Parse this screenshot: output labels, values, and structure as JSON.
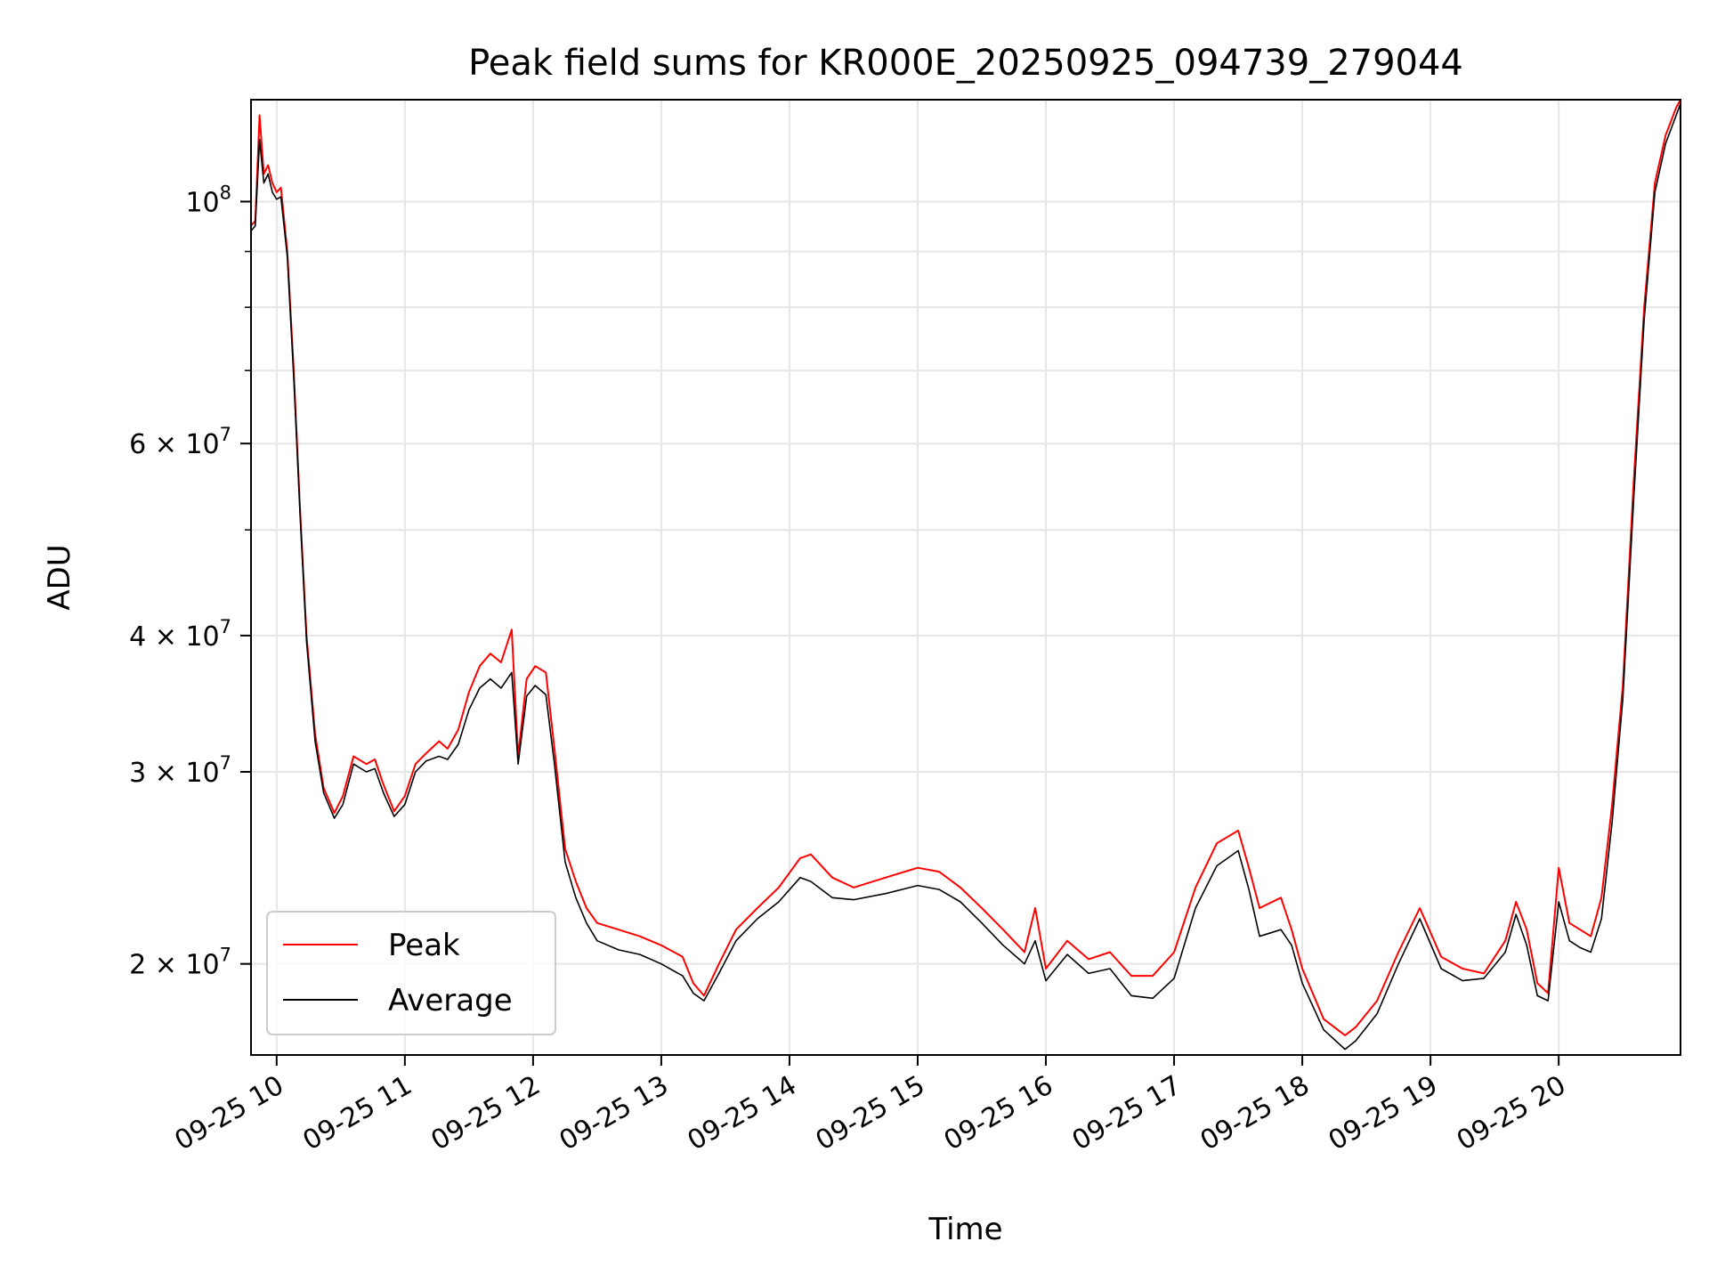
{
  "chart_data": {
    "type": "line",
    "title": "Peak field sums for KR000E_20250925_094739_279044",
    "xlabel": "Time",
    "ylabel": "ADU",
    "yscale": "log",
    "grid": true,
    "legend_position": "lower-left",
    "xlim": [
      "2025-09-25 09:48",
      "2025-09-25 20:57"
    ],
    "ylim": [
      16500000,
      124000000
    ],
    "x_ticks": [
      {
        "value": "2025-09-25 10:00",
        "label": "09-25 10"
      },
      {
        "value": "2025-09-25 11:00",
        "label": "09-25 11"
      },
      {
        "value": "2025-09-25 12:00",
        "label": "09-25 12"
      },
      {
        "value": "2025-09-25 13:00",
        "label": "09-25 13"
      },
      {
        "value": "2025-09-25 14:00",
        "label": "09-25 14"
      },
      {
        "value": "2025-09-25 15:00",
        "label": "09-25 15"
      },
      {
        "value": "2025-09-25 16:00",
        "label": "09-25 16"
      },
      {
        "value": "2025-09-25 17:00",
        "label": "09-25 17"
      },
      {
        "value": "2025-09-25 18:00",
        "label": "09-25 18"
      },
      {
        "value": "2025-09-25 19:00",
        "label": "09-25 19"
      },
      {
        "value": "2025-09-25 20:00",
        "label": "09-25 20"
      }
    ],
    "y_ticks": [
      {
        "value": 20000000,
        "mantissa": "2",
        "exponent": "7"
      },
      {
        "value": 30000000,
        "mantissa": "3",
        "exponent": "7"
      },
      {
        "value": 40000000,
        "mantissa": "4",
        "exponent": "7"
      },
      {
        "value": 60000000,
        "mantissa": "6",
        "exponent": "7"
      },
      {
        "value": 100000000,
        "mantissa": "",
        "exponent": "8"
      }
    ],
    "y_minor_ticks": [
      50000000,
      70000000,
      80000000,
      90000000
    ],
    "series": [
      {
        "name": "Peak",
        "color": "#ff0000",
        "points": [
          [
            "09:48",
            95000000
          ],
          [
            "09:50",
            96000000
          ],
          [
            "09:52",
            120000000
          ],
          [
            "09:54",
            106000000
          ],
          [
            "09:56",
            108000000
          ],
          [
            "09:58",
            104000000
          ],
          [
            "10:00",
            102000000
          ],
          [
            "10:02",
            103000000
          ],
          [
            "10:05",
            90000000
          ],
          [
            "10:08",
            70000000
          ],
          [
            "10:11",
            52000000
          ],
          [
            "10:14",
            40000000
          ],
          [
            "10:18",
            32500000
          ],
          [
            "10:22",
            29000000
          ],
          [
            "10:27",
            27500000
          ],
          [
            "10:31",
            28500000
          ],
          [
            "10:36",
            31000000
          ],
          [
            "10:42",
            30500000
          ],
          [
            "10:46",
            30800000
          ],
          [
            "10:50",
            29200000
          ],
          [
            "10:55",
            27600000
          ],
          [
            "11:00",
            28500000
          ],
          [
            "11:05",
            30500000
          ],
          [
            "11:10",
            31200000
          ],
          [
            "11:16",
            32000000
          ],
          [
            "11:20",
            31500000
          ],
          [
            "11:25",
            32800000
          ],
          [
            "11:30",
            35500000
          ],
          [
            "11:35",
            37500000
          ],
          [
            "11:40",
            38500000
          ],
          [
            "11:45",
            37800000
          ],
          [
            "11:50",
            40500000
          ],
          [
            "11:53",
            31000000
          ],
          [
            "11:57",
            36500000
          ],
          [
            "12:01",
            37500000
          ],
          [
            "12:06",
            37000000
          ],
          [
            "12:10",
            31500000
          ],
          [
            "12:15",
            25500000
          ],
          [
            "12:20",
            23800000
          ],
          [
            "12:25",
            22500000
          ],
          [
            "12:30",
            21800000
          ],
          [
            "12:40",
            21500000
          ],
          [
            "12:50",
            21200000
          ],
          [
            "13:00",
            20800000
          ],
          [
            "13:10",
            20300000
          ],
          [
            "13:15",
            19200000
          ],
          [
            "13:20",
            18700000
          ],
          [
            "13:27",
            20000000
          ],
          [
            "13:35",
            21500000
          ],
          [
            "13:45",
            22500000
          ],
          [
            "13:55",
            23500000
          ],
          [
            "14:05",
            25000000
          ],
          [
            "14:10",
            25200000
          ],
          [
            "14:20",
            24000000
          ],
          [
            "14:30",
            23500000
          ],
          [
            "14:45",
            24000000
          ],
          [
            "15:00",
            24500000
          ],
          [
            "15:10",
            24300000
          ],
          [
            "15:20",
            23500000
          ],
          [
            "15:30",
            22500000
          ],
          [
            "15:40",
            21500000
          ],
          [
            "15:50",
            20500000
          ],
          [
            "15:55",
            22500000
          ],
          [
            "16:00",
            19800000
          ],
          [
            "16:10",
            21000000
          ],
          [
            "16:20",
            20200000
          ],
          [
            "16:30",
            20500000
          ],
          [
            "16:40",
            19500000
          ],
          [
            "16:50",
            19500000
          ],
          [
            "17:00",
            20500000
          ],
          [
            "17:10",
            23500000
          ],
          [
            "17:20",
            25800000
          ],
          [
            "17:30",
            26500000
          ],
          [
            "17:35",
            24500000
          ],
          [
            "17:40",
            22500000
          ],
          [
            "17:50",
            23000000
          ],
          [
            "17:55",
            21500000
          ],
          [
            "18:00",
            19800000
          ],
          [
            "18:10",
            17800000
          ],
          [
            "18:20",
            17200000
          ],
          [
            "18:25",
            17500000
          ],
          [
            "18:35",
            18500000
          ],
          [
            "18:45",
            20500000
          ],
          [
            "18:55",
            22500000
          ],
          [
            "19:05",
            20300000
          ],
          [
            "19:15",
            19800000
          ],
          [
            "19:25",
            19600000
          ],
          [
            "19:35",
            21000000
          ],
          [
            "19:40",
            22800000
          ],
          [
            "19:45",
            21500000
          ],
          [
            "19:50",
            19200000
          ],
          [
            "19:55",
            18800000
          ],
          [
            "20:00",
            24500000
          ],
          [
            "20:05",
            21800000
          ],
          [
            "20:10",
            21500000
          ],
          [
            "20:15",
            21200000
          ],
          [
            "20:20",
            23000000
          ],
          [
            "20:25",
            28000000
          ],
          [
            "20:30",
            36000000
          ],
          [
            "20:35",
            55000000
          ],
          [
            "20:40",
            80000000
          ],
          [
            "20:45",
            104000000
          ],
          [
            "20:50",
            115000000
          ],
          [
            "20:55",
            122000000
          ],
          [
            "20:57",
            124000000
          ]
        ]
      },
      {
        "name": "Average",
        "color": "#000000",
        "points": [
          [
            "09:48",
            94000000
          ],
          [
            "09:50",
            95000000
          ],
          [
            "09:52",
            114000000
          ],
          [
            "09:54",
            104000000
          ],
          [
            "09:56",
            106000000
          ],
          [
            "09:58",
            102000000
          ],
          [
            "10:00",
            100500000
          ],
          [
            "10:02",
            101000000
          ],
          [
            "10:05",
            89000000
          ],
          [
            "10:08",
            69000000
          ],
          [
            "10:11",
            51500000
          ],
          [
            "10:14",
            39500000
          ],
          [
            "10:18",
            32000000
          ],
          [
            "10:22",
            28700000
          ],
          [
            "10:27",
            27200000
          ],
          [
            "10:31",
            28000000
          ],
          [
            "10:36",
            30500000
          ],
          [
            "10:42",
            30000000
          ],
          [
            "10:46",
            30200000
          ],
          [
            "10:50",
            28700000
          ],
          [
            "10:55",
            27300000
          ],
          [
            "11:00",
            28000000
          ],
          [
            "11:05",
            30000000
          ],
          [
            "11:10",
            30700000
          ],
          [
            "11:16",
            31000000
          ],
          [
            "11:20",
            30800000
          ],
          [
            "11:25",
            31800000
          ],
          [
            "11:30",
            34200000
          ],
          [
            "11:35",
            35800000
          ],
          [
            "11:40",
            36500000
          ],
          [
            "11:45",
            35800000
          ],
          [
            "11:50",
            37000000
          ],
          [
            "11:53",
            30500000
          ],
          [
            "11:57",
            35200000
          ],
          [
            "12:01",
            36000000
          ],
          [
            "12:06",
            35300000
          ],
          [
            "12:10",
            30500000
          ],
          [
            "12:15",
            24800000
          ],
          [
            "12:20",
            23000000
          ],
          [
            "12:25",
            21800000
          ],
          [
            "12:30",
            21000000
          ],
          [
            "12:40",
            20600000
          ],
          [
            "12:50",
            20400000
          ],
          [
            "13:00",
            20000000
          ],
          [
            "13:10",
            19500000
          ],
          [
            "13:15",
            18800000
          ],
          [
            "13:20",
            18500000
          ],
          [
            "13:27",
            19600000
          ],
          [
            "13:35",
            21000000
          ],
          [
            "13:45",
            22000000
          ],
          [
            "13:55",
            22800000
          ],
          [
            "14:05",
            24000000
          ],
          [
            "14:10",
            23800000
          ],
          [
            "14:20",
            23000000
          ],
          [
            "14:30",
            22900000
          ],
          [
            "14:45",
            23200000
          ],
          [
            "15:00",
            23600000
          ],
          [
            "15:10",
            23400000
          ],
          [
            "15:20",
            22800000
          ],
          [
            "15:30",
            21800000
          ],
          [
            "15:40",
            20800000
          ],
          [
            "15:50",
            20000000
          ],
          [
            "15:55",
            21000000
          ],
          [
            "16:00",
            19300000
          ],
          [
            "16:10",
            20400000
          ],
          [
            "16:20",
            19600000
          ],
          [
            "16:30",
            19800000
          ],
          [
            "16:40",
            18700000
          ],
          [
            "16:50",
            18600000
          ],
          [
            "17:00",
            19400000
          ],
          [
            "17:10",
            22500000
          ],
          [
            "17:20",
            24600000
          ],
          [
            "17:30",
            25400000
          ],
          [
            "17:35",
            23400000
          ],
          [
            "17:40",
            21200000
          ],
          [
            "17:50",
            21500000
          ],
          [
            "17:55",
            20800000
          ],
          [
            "18:00",
            19200000
          ],
          [
            "18:10",
            17400000
          ],
          [
            "18:20",
            16700000
          ],
          [
            "18:25",
            17000000
          ],
          [
            "18:35",
            18000000
          ],
          [
            "18:45",
            20000000
          ],
          [
            "18:55",
            22000000
          ],
          [
            "19:05",
            19800000
          ],
          [
            "19:15",
            19300000
          ],
          [
            "19:25",
            19400000
          ],
          [
            "19:35",
            20500000
          ],
          [
            "19:40",
            22200000
          ],
          [
            "19:45",
            20800000
          ],
          [
            "19:50",
            18700000
          ],
          [
            "19:55",
            18500000
          ],
          [
            "20:00",
            22800000
          ],
          [
            "20:05",
            21000000
          ],
          [
            "20:10",
            20700000
          ],
          [
            "20:15",
            20500000
          ],
          [
            "20:20",
            22000000
          ],
          [
            "20:25",
            27000000
          ],
          [
            "20:30",
            35000000
          ],
          [
            "20:35",
            53000000
          ],
          [
            "20:40",
            78000000
          ],
          [
            "20:45",
            102000000
          ],
          [
            "20:50",
            113000000
          ],
          [
            "20:55",
            120000000
          ],
          [
            "20:57",
            123000000
          ]
        ]
      }
    ]
  }
}
